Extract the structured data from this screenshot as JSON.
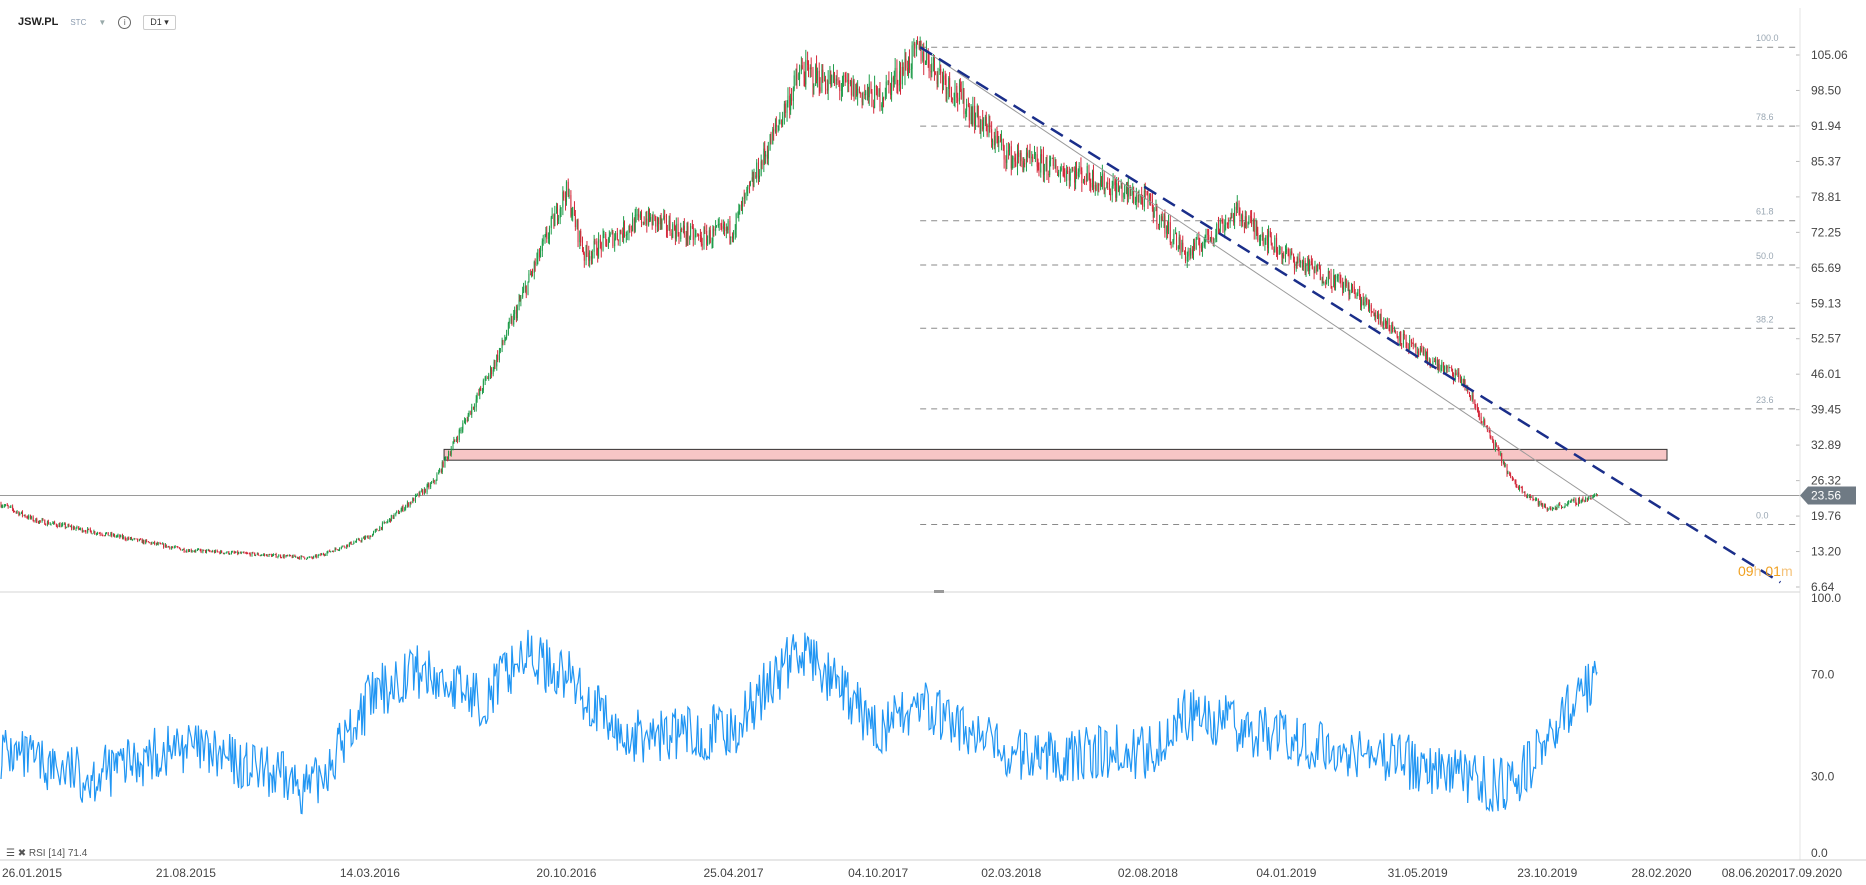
{
  "toolbar": {
    "symbol": "JSW.PL",
    "type": "STC",
    "timeframe": "D1"
  },
  "timer": {
    "hours": "09",
    "h_unit": "h",
    "minutes": "01",
    "m_unit": "m"
  },
  "rsi_legend": {
    "name": "RSI [14]",
    "value": "71.4"
  },
  "colors": {
    "up": "#1f9c4a",
    "down": "#d4283a",
    "rsi": "#2196f3",
    "trend": "#1a2e8a",
    "zone": "#f7c6c6",
    "price_tag": "#6f7a84"
  },
  "chart_data": [
    {
      "type": "candlestick",
      "title": "JSW.PL",
      "x_ticks": [
        "26.01.2015",
        "21.08.2015",
        "14.03.2016",
        "20.10.2016",
        "25.04.2017",
        "04.10.2017",
        "02.03.2018",
        "02.08.2018",
        "04.01.2019",
        "31.05.2019",
        "23.10.2019",
        "28.02.2020",
        "08.06.2020",
        "17.09.2020"
      ],
      "y_ticks": [
        "105.06",
        "98.50",
        "91.94",
        "85.37",
        "78.81",
        "72.25",
        "65.69",
        "59.13",
        "52.57",
        "46.01",
        "39.45",
        "32.89",
        "26.32",
        "19.76",
        "13.20",
        "6.64"
      ],
      "ylim": [
        6.64,
        105.06
      ],
      "last_price": "23.56",
      "anchors": [
        [
          "26.01.2015",
          22
        ],
        [
          "05.03.2015",
          19
        ],
        [
          "21.08.2015",
          13.5
        ],
        [
          "10.01.2016",
          12
        ],
        [
          "14.03.2016",
          16
        ],
        [
          "25.05.2016",
          26
        ],
        [
          "01.08.2016",
          48
        ],
        [
          "20.10.2016",
          80
        ],
        [
          "10.11.2016",
          68
        ],
        [
          "15.01.2017",
          75
        ],
        [
          "20.03.2017",
          71
        ],
        [
          "25.04.2017",
          73
        ],
        [
          "10.07.2017",
          102
        ],
        [
          "04.10.2017",
          97
        ],
        [
          "20.11.2017",
          106
        ],
        [
          "02.03.2018",
          86
        ],
        [
          "20.05.2018",
          83
        ],
        [
          "02.08.2018",
          78
        ],
        [
          "15.09.2018",
          68
        ],
        [
          "10.11.2018",
          76
        ],
        [
          "04.01.2019",
          68
        ],
        [
          "15.03.2019",
          62
        ],
        [
          "31.05.2019",
          50
        ],
        [
          "20.07.2019",
          45
        ],
        [
          "15.09.2019",
          26
        ],
        [
          "23.10.2019",
          21
        ],
        [
          "20.12.2019",
          23.6
        ]
      ],
      "fibonacci": [
        {
          "label": "100.0",
          "value": 106.5
        },
        {
          "label": "78.6",
          "value": 91.9
        },
        {
          "label": "61.8",
          "value": 74.4
        },
        {
          "label": "50.0",
          "value": 66.2
        },
        {
          "label": "38.2",
          "value": 54.5
        },
        {
          "label": "23.6",
          "value": 39.6
        },
        {
          "label": "0.0",
          "value": 18.2
        }
      ],
      "resistance_zone": [
        30.1,
        32.1
      ],
      "trendline_dashed": [
        [
          "20.11.2017",
          106.5
        ],
        [
          "10.07.2020",
          7.5
        ]
      ],
      "trendline_thin": [
        [
          "20.11.2017",
          106.5
        ],
        [
          "25.01.2020",
          18.2
        ]
      ]
    },
    {
      "type": "line",
      "title": "RSI [14]",
      "y_ticks": [
        "100.0",
        "70.0",
        "30.0",
        "0.0"
      ],
      "ylim": [
        0,
        100
      ],
      "last_value": "71.4",
      "anchors": [
        [
          "26.01.2015",
          40
        ],
        [
          "10.03.2015",
          35
        ],
        [
          "05.05.2015",
          30
        ],
        [
          "21.08.2015",
          42
        ],
        [
          "10.11.2015",
          32
        ],
        [
          "10.01.2016",
          25
        ],
        [
          "14.03.2016",
          60
        ],
        [
          "01.05.2016",
          72
        ],
        [
          "20.07.2016",
          60
        ],
        [
          "01.09.2016",
          78
        ],
        [
          "20.10.2016",
          70
        ],
        [
          "20.12.2016",
          45
        ],
        [
          "25.04.2017",
          48
        ],
        [
          "01.06.2017",
          65
        ],
        [
          "10.07.2017",
          80
        ],
        [
          "04.10.2017",
          48
        ],
        [
          "20.11.2017",
          58
        ],
        [
          "02.03.2018",
          38
        ],
        [
          "02.08.2018",
          40
        ],
        [
          "15.09.2018",
          55
        ],
        [
          "04.01.2019",
          45
        ],
        [
          "31.05.2019",
          35
        ],
        [
          "15.09.2019",
          25
        ],
        [
          "23.10.2019",
          45
        ],
        [
          "20.12.2019",
          71.4
        ]
      ]
    }
  ]
}
